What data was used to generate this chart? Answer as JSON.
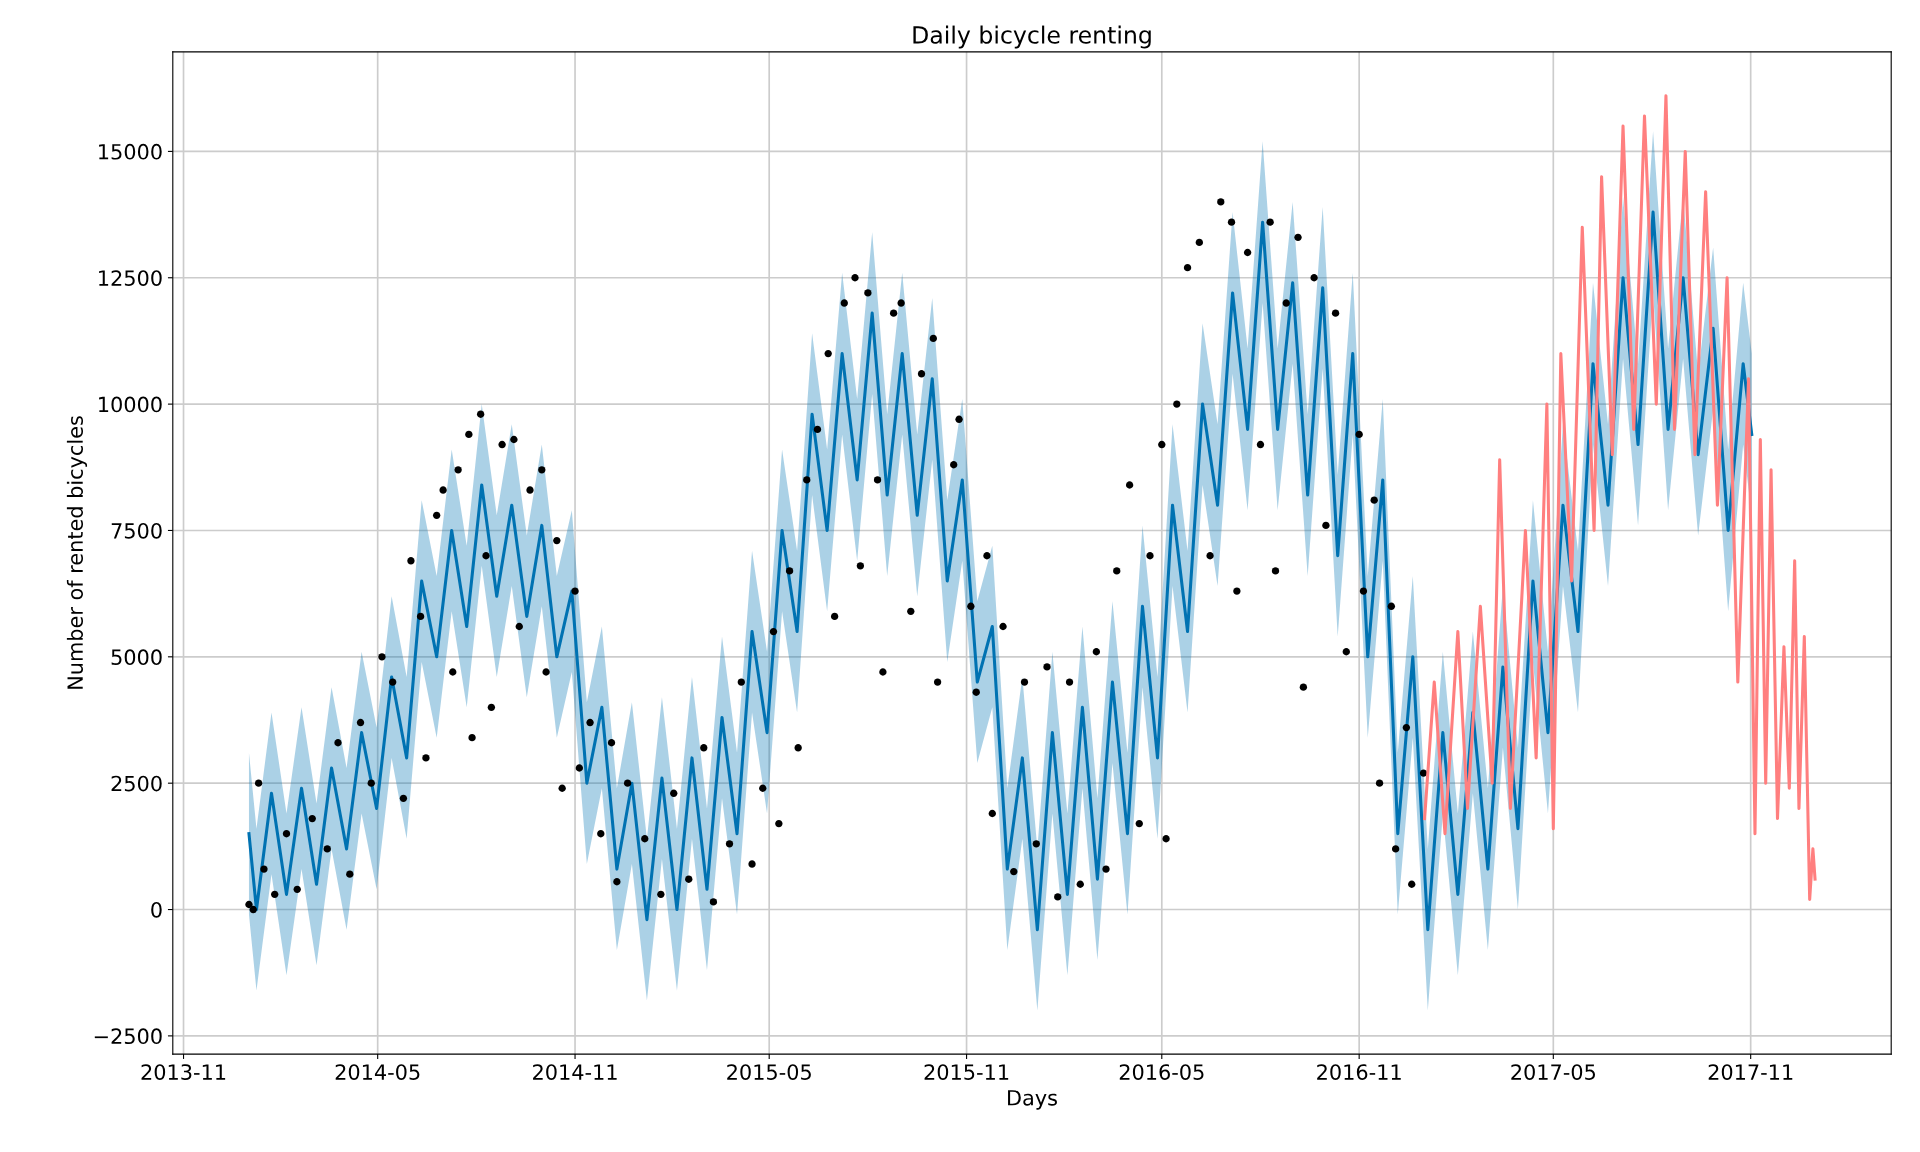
{
  "chart_data": {
    "type": "line",
    "title": "Daily bicycle renting",
    "xlabel": "Days",
    "ylabel": "Number of rented bicycles",
    "xlim": [
      "2013-10-22",
      "2018-03-12"
    ],
    "ylim": [
      -2860,
      16970
    ],
    "xticks": [
      "2013-11",
      "2014-05",
      "2014-11",
      "2015-05",
      "2015-11",
      "2016-05",
      "2016-11",
      "2017-05",
      "2017-11"
    ],
    "yticks": [
      {
        "value": -2500,
        "label": "−2500"
      },
      0,
      2500,
      5000,
      7500,
      10000,
      12500,
      15000
    ],
    "grid": true,
    "series": [
      {
        "color": "#0072b2",
        "x": [
          "2014-01-01",
          "2014-01-08",
          "2014-01-22",
          "2014-02-05",
          "2014-02-19",
          "2014-03-05",
          "2014-03-19",
          "2014-04-02",
          "2014-04-16",
          "2014-04-30",
          "2014-05-14",
          "2014-05-28",
          "2014-06-11",
          "2014-06-25",
          "2014-07-09",
          "2014-07-23",
          "2014-08-06",
          "2014-08-20",
          "2014-09-03",
          "2014-09-17",
          "2014-10-01",
          "2014-10-15",
          "2014-10-29",
          "2014-11-12",
          "2014-11-26",
          "2014-12-10",
          "2014-12-24",
          "2015-01-07",
          "2015-01-21",
          "2015-02-04",
          "2015-02-18",
          "2015-03-04",
          "2015-03-18",
          "2015-04-01",
          "2015-04-15",
          "2015-04-29",
          "2015-05-13",
          "2015-05-27",
          "2015-06-10",
          "2015-06-24",
          "2015-07-08",
          "2015-07-22",
          "2015-08-05",
          "2015-08-19",
          "2015-09-02",
          "2015-09-16",
          "2015-09-30",
          "2015-10-14",
          "2015-10-28",
          "2015-11-11",
          "2015-11-25",
          "2015-12-09",
          "2015-12-23",
          "2016-01-06",
          "2016-01-20",
          "2016-02-03",
          "2016-02-17",
          "2016-03-02",
          "2016-03-16",
          "2016-03-30",
          "2016-04-13",
          "2016-04-27",
          "2016-05-11",
          "2016-05-25",
          "2016-06-08",
          "2016-06-22",
          "2016-07-06",
          "2016-07-20",
          "2016-08-03",
          "2016-08-17",
          "2016-08-31",
          "2016-09-14",
          "2016-09-28",
          "2016-10-12",
          "2016-10-26",
          "2016-11-09",
          "2016-11-23",
          "2016-12-07",
          "2016-12-21",
          "2017-01-04",
          "2017-01-18",
          "2017-02-01",
          "2017-02-15",
          "2017-03-01",
          "2017-03-15",
          "2017-03-29",
          "2017-04-12",
          "2017-04-26",
          "2017-05-10",
          "2017-05-24",
          "2017-06-07",
          "2017-06-21",
          "2017-07-05",
          "2017-07-19",
          "2017-08-02",
          "2017-08-16",
          "2017-08-30",
          "2017-09-13",
          "2017-09-27",
          "2017-10-11",
          "2017-10-25",
          "2017-11-02"
        ],
        "values": [
          1500,
          0,
          2300,
          300,
          2400,
          500,
          2800,
          1200,
          3500,
          2000,
          4600,
          3000,
          6500,
          5000,
          7500,
          5600,
          8400,
          6200,
          8000,
          5800,
          7600,
          5000,
          6300,
          2500,
          4000,
          800,
          2500,
          -200,
          2600,
          0,
          3000,
          400,
          3800,
          1500,
          5500,
          3500,
          7500,
          5500,
          9800,
          7500,
          11000,
          8500,
          11800,
          8200,
          11000,
          7800,
          10500,
          6500,
          8500,
          4500,
          5600,
          800,
          3000,
          -400,
          3500,
          300,
          4000,
          600,
          4500,
          1500,
          6000,
          3000,
          8000,
          5500,
          10000,
          8000,
          12200,
          9500,
          13600,
          9500,
          12400,
          8200,
          12300,
          7000,
          11000,
          5000,
          8500,
          1500,
          5000,
          -400,
          3500,
          300,
          3900,
          800,
          4800,
          1600,
          6500,
          3500,
          8000,
          5500,
          10800,
          8000,
          12500,
          9200,
          13800,
          9500,
          12500,
          9000,
          11500,
          7500,
          10800,
          9400
        ],
        "lower": [
          -100,
          -1600,
          700,
          -1300,
          800,
          -1100,
          1200,
          -400,
          1900,
          400,
          3000,
          1400,
          4900,
          3400,
          5900,
          4000,
          6800,
          4600,
          6400,
          4200,
          6000,
          3400,
          4700,
          900,
          2400,
          -800,
          900,
          -1800,
          1000,
          -1600,
          1400,
          -1200,
          2200,
          -100,
          3900,
          1900,
          5900,
          3900,
          8200,
          5900,
          9400,
          6900,
          10200,
          6600,
          9400,
          6200,
          8900,
          4900,
          6900,
          2900,
          4000,
          -800,
          1400,
          -2000,
          1900,
          -1300,
          2400,
          -1000,
          2900,
          -100,
          4400,
          1400,
          6400,
          3900,
          8400,
          6400,
          10600,
          7900,
          12000,
          7900,
          10800,
          6600,
          10700,
          5400,
          9400,
          3400,
          6900,
          -100,
          3400,
          -2000,
          1900,
          -1300,
          2300,
          -800,
          3200,
          0,
          4900,
          1900,
          6400,
          3900,
          9200,
          6400,
          10900,
          7600,
          12200,
          7900,
          10900,
          7400,
          9900,
          5900,
          9200,
          7800
        ],
        "upper": [
          3100,
          1600,
          3900,
          1900,
          4000,
          2100,
          4400,
          2800,
          5100,
          3600,
          6200,
          4600,
          8100,
          6600,
          9100,
          7200,
          10000,
          7800,
          9600,
          7400,
          9200,
          6600,
          7900,
          4100,
          5600,
          2400,
          4100,
          1400,
          4200,
          1600,
          4600,
          2000,
          5400,
          3100,
          7100,
          5100,
          9100,
          7100,
          11400,
          9100,
          12600,
          10100,
          13400,
          9800,
          12600,
          9400,
          12100,
          8100,
          10100,
          6100,
          7200,
          2400,
          4600,
          1200,
          5100,
          1900,
          5600,
          2200,
          6100,
          3100,
          7600,
          4600,
          9600,
          7100,
          11600,
          9600,
          13800,
          11100,
          15200,
          11100,
          14000,
          9800,
          13900,
          8600,
          12600,
          6600,
          10100,
          3100,
          6600,
          1200,
          5100,
          1900,
          5500,
          2400,
          6400,
          3200,
          8100,
          5100,
          9600,
          7100,
          12400,
          9600,
          14100,
          10800,
          15400,
          11100,
          14100,
          10600,
          13100,
          9100,
          12400,
          11000
        ]
      },
      {
        "type": "scatter",
        "color": "#000000",
        "marker": "circle",
        "x": [
          "2014-01-01",
          "2014-01-05",
          "2014-01-10",
          "2014-01-15",
          "2014-01-25",
          "2014-02-05",
          "2014-02-15",
          "2014-03-01",
          "2014-03-15",
          "2014-03-25",
          "2014-04-05",
          "2014-04-15",
          "2014-04-25",
          "2014-05-05",
          "2014-05-15",
          "2014-05-25",
          "2014-06-01",
          "2014-06-10",
          "2014-06-15",
          "2014-06-25",
          "2014-07-01",
          "2014-07-10",
          "2014-07-15",
          "2014-07-25",
          "2014-07-28",
          "2014-08-05",
          "2014-08-10",
          "2014-08-15",
          "2014-08-25",
          "2014-09-05",
          "2014-09-10",
          "2014-09-20",
          "2014-10-01",
          "2014-10-05",
          "2014-10-15",
          "2014-10-20",
          "2014-11-01",
          "2014-11-05",
          "2014-11-15",
          "2014-11-25",
          "2014-12-05",
          "2014-12-10",
          "2014-12-20",
          "2015-01-05",
          "2015-01-20",
          "2015-02-01",
          "2015-02-15",
          "2015-03-01",
          "2015-03-10",
          "2015-03-25",
          "2015-04-05",
          "2015-04-15",
          "2015-04-25",
          "2015-05-05",
          "2015-05-10",
          "2015-05-20",
          "2015-05-28",
          "2015-06-05",
          "2015-06-15",
          "2015-06-25",
          "2015-07-01",
          "2015-07-10",
          "2015-07-20",
          "2015-07-25",
          "2015-08-01",
          "2015-08-10",
          "2015-08-15",
          "2015-08-25",
          "2015-09-01",
          "2015-09-10",
          "2015-09-20",
          "2015-10-01",
          "2015-10-05",
          "2015-10-20",
          "2015-10-25",
          "2015-11-05",
          "2015-11-10",
          "2015-11-20",
          "2015-11-25",
          "2015-12-05",
          "2015-12-15",
          "2015-12-25",
          "2016-01-05",
          "2016-01-15",
          "2016-01-25",
          "2016-02-05",
          "2016-02-15",
          "2016-03-01",
          "2016-03-10",
          "2016-03-20",
          "2016-04-01",
          "2016-04-10",
          "2016-04-20",
          "2016-05-01",
          "2016-05-05",
          "2016-05-15",
          "2016-05-25",
          "2016-06-05",
          "2016-06-15",
          "2016-06-25",
          "2016-07-05",
          "2016-07-10",
          "2016-07-20",
          "2016-08-01",
          "2016-08-10",
          "2016-08-15",
          "2016-08-25",
          "2016-09-05",
          "2016-09-10",
          "2016-09-20",
          "2016-10-01",
          "2016-10-10",
          "2016-10-20",
          "2016-11-01",
          "2016-11-05",
          "2016-11-15",
          "2016-11-20",
          "2016-12-01",
          "2016-12-05",
          "2016-12-15",
          "2016-12-20",
          "2016-12-31"
        ],
        "values": [
          100,
          0,
          2500,
          800,
          300,
          1500,
          400,
          1800,
          1200,
          3300,
          700,
          3700,
          2500,
          5000,
          4500,
          2200,
          6900,
          5800,
          3000,
          7800,
          8300,
          4700,
          8700,
          9400,
          3400,
          9800,
          7000,
          4000,
          9200,
          9300,
          5600,
          8300,
          8700,
          4700,
          7300,
          2400,
          6300,
          2800,
          3700,
          1500,
          3300,
          550,
          2500,
          1400,
          300,
          2300,
          600,
          3200,
          150,
          1300,
          4500,
          900,
          2400,
          5500,
          1700,
          6700,
          3200,
          8500,
          9500,
          11000,
          5800,
          12000,
          12500,
          6800,
          12200,
          8500,
          4700,
          11800,
          12000,
          5900,
          10600,
          11300,
          4500,
          8800,
          9700,
          6000,
          4300,
          7000,
          1900,
          5600,
          750,
          4500,
          1300,
          4800,
          250,
          4500,
          500,
          5100,
          800,
          6700,
          8400,
          1700,
          7000,
          9200,
          1400,
          10000,
          12700,
          13200,
          7000,
          14000,
          13600,
          6300,
          13000,
          9200,
          13600,
          6700,
          12000,
          13300,
          4400,
          12500,
          7600,
          11800,
          5100,
          9400,
          6300,
          8100,
          2500,
          6000,
          1200,
          3600,
          500,
          2700
        ]
      },
      {
        "color": "#ff7f7f",
        "x": [
          "2017-01-01",
          "2017-01-10",
          "2017-01-20",
          "2017-02-01",
          "2017-02-10",
          "2017-02-22",
          "2017-03-05",
          "2017-03-12",
          "2017-03-22",
          "2017-04-05",
          "2017-04-15",
          "2017-04-25",
          "2017-05-01",
          "2017-05-08",
          "2017-05-18",
          "2017-05-28",
          "2017-06-08",
          "2017-06-15",
          "2017-06-25",
          "2017-07-05",
          "2017-07-15",
          "2017-07-25",
          "2017-08-05",
          "2017-08-14",
          "2017-08-22",
          "2017-09-01",
          "2017-09-10",
          "2017-09-20",
          "2017-10-01",
          "2017-10-10",
          "2017-10-20",
          "2017-10-30",
          "2017-11-05",
          "2017-11-10",
          "2017-11-15",
          "2017-11-20",
          "2017-11-26",
          "2017-12-02",
          "2017-12-07",
          "2017-12-12",
          "2017-12-16",
          "2017-12-21",
          "2017-12-26",
          "2017-12-29",
          "2017-12-31"
        ],
        "values": [
          1800,
          4500,
          1500,
          5500,
          2000,
          6000,
          2500,
          8900,
          2000,
          7500,
          3000,
          10000,
          1600,
          11000,
          6500,
          13500,
          7500,
          14500,
          9000,
          15500,
          9500,
          15700,
          10000,
          16100,
          9500,
          15000,
          9000,
          14200,
          8000,
          12500,
          4500,
          10500,
          1500,
          9300,
          2500,
          8700,
          1800,
          5200,
          2400,
          6900,
          2000,
          5400,
          200,
          1200,
          600
        ]
      }
    ]
  }
}
